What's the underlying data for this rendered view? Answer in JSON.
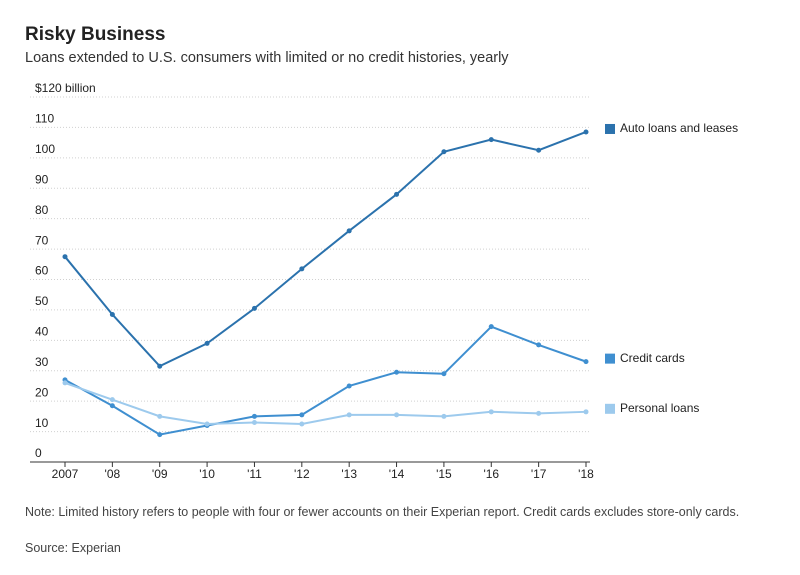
{
  "chart_data": {
    "type": "line",
    "title": "Risky Business",
    "subtitle": "Loans extended to U.S. consumers with limited or no credit histories, yearly",
    "note": "Note: Limited history refers to people with four or fewer accounts on their Experian report. Credit cards excludes store-only cards.",
    "source": "Source: Experian",
    "categories": [
      "2007",
      "'08",
      "'09",
      "'10",
      "'11",
      "'12",
      "'13",
      "'14",
      "'15",
      "'16",
      "'17",
      "'18"
    ],
    "series": [
      {
        "name": "Auto loans and leases",
        "color": "#2b72ad",
        "values": [
          67.5,
          48.5,
          31.5,
          39,
          50.5,
          63.5,
          76,
          88,
          102,
          106,
          102.5,
          108.5
        ]
      },
      {
        "name": "Credit cards",
        "color": "#3f8fd0",
        "values": [
          27,
          18.5,
          9,
          12,
          15,
          15.5,
          25,
          29.5,
          29,
          44.5,
          38.5,
          33
        ]
      },
      {
        "name": "Personal loans",
        "color": "#9dcaed",
        "values": [
          26,
          20.5,
          15,
          12.5,
          13,
          12.5,
          15.5,
          15.5,
          15,
          16.5,
          16,
          16.5
        ]
      }
    ],
    "ylim": [
      0,
      120
    ],
    "yticks": [
      0,
      10,
      20,
      30,
      40,
      50,
      60,
      70,
      80,
      90,
      100,
      110,
      {
        "value": 120,
        "label": "$120 billion"
      }
    ],
    "grid": true
  }
}
